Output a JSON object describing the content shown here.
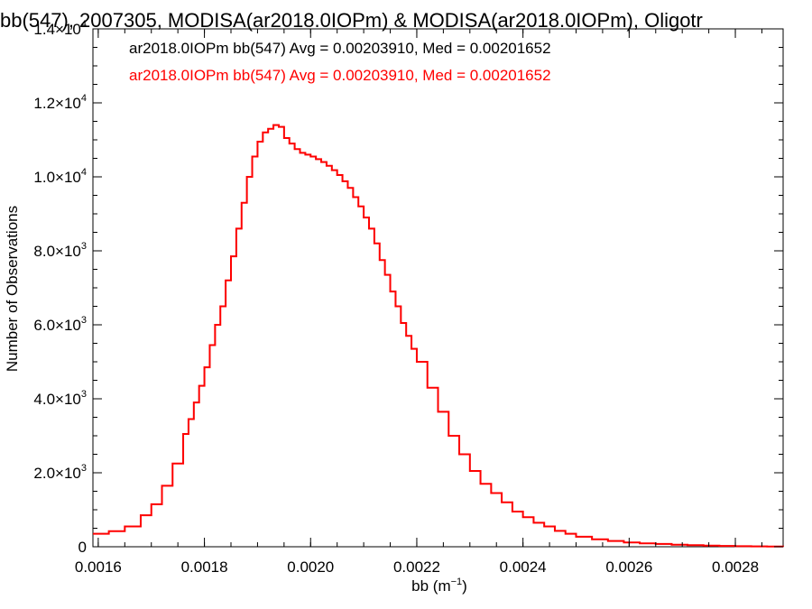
{
  "chart_data": {
    "type": "line",
    "title": "bb(547), 2007305, MODISA(ar2018.0IOPm) & MODISA(ar2018.0IOPm), Oligotr",
    "xlabel": {
      "base": "bb (m",
      "sup": "−1",
      "close": ")"
    },
    "ylabel": "Number of Observations",
    "xlim": [
      0.00159,
      0.00289
    ],
    "ylim": [
      0,
      14000
    ],
    "grid": false,
    "legend_position": "top-left",
    "x_ticks": [
      {
        "value": 0.0016,
        "label": "0.0016"
      },
      {
        "value": 0.0018,
        "label": "0.0018"
      },
      {
        "value": 0.002,
        "label": "0.0020"
      },
      {
        "value": 0.0022,
        "label": "0.0022"
      },
      {
        "value": 0.0024,
        "label": "0.0024"
      },
      {
        "value": 0.0026,
        "label": "0.0026"
      },
      {
        "value": 0.0028,
        "label": "0.0028"
      }
    ],
    "y_ticks": [
      {
        "value": 0,
        "mant": "0",
        "exp": ""
      },
      {
        "value": 2000,
        "mant": "2.0×10",
        "exp": "3"
      },
      {
        "value": 4000,
        "mant": "4.0×10",
        "exp": "3"
      },
      {
        "value": 6000,
        "mant": "6.0×10",
        "exp": "3"
      },
      {
        "value": 8000,
        "mant": "8.0×10",
        "exp": "3"
      },
      {
        "value": 10000,
        "mant": "1.0×10",
        "exp": "4"
      },
      {
        "value": 12000,
        "mant": "1.2×10",
        "exp": "4"
      },
      {
        "value": 14000,
        "mant": "1.4×10",
        "exp": "4"
      }
    ],
    "series": [
      {
        "name": "ar2018.0IOPm bb(547) Avg = 0.00203910, Med = 0.00201652",
        "color": "#000000",
        "x": [
          0.00159,
          0.00162,
          0.00165,
          0.00168,
          0.0017,
          0.00172,
          0.00174,
          0.00176,
          0.00177,
          0.00178,
          0.00179,
          0.0018,
          0.00181,
          0.00182,
          0.00183,
          0.00184,
          0.00185,
          0.00186,
          0.00187,
          0.00188,
          0.00189,
          0.0019,
          0.00191,
          0.00192,
          0.00193,
          0.00194,
          0.00195,
          0.00196,
          0.00197,
          0.00198,
          0.00199,
          0.002,
          0.00201,
          0.00202,
          0.00203,
          0.00204,
          0.00205,
          0.00206,
          0.00207,
          0.00208,
          0.00209,
          0.0021,
          0.00211,
          0.00212,
          0.00213,
          0.00214,
          0.00215,
          0.00216,
          0.00217,
          0.00218,
          0.00219,
          0.0022,
          0.00222,
          0.00224,
          0.00226,
          0.00228,
          0.0023,
          0.00232,
          0.00234,
          0.00236,
          0.00238,
          0.0024,
          0.00242,
          0.00244,
          0.00246,
          0.00248,
          0.0025,
          0.00253,
          0.00256,
          0.00259,
          0.00262,
          0.00265,
          0.00268,
          0.00271,
          0.00274,
          0.00277,
          0.0028,
          0.00283,
          0.00286,
          0.00289
        ],
        "y": [
          350,
          420,
          550,
          850,
          1150,
          1650,
          2250,
          3050,
          3450,
          3900,
          4350,
          4850,
          5450,
          6000,
          6500,
          7200,
          7850,
          8600,
          9300,
          10000,
          10550,
          10950,
          11200,
          11300,
          11400,
          11350,
          11050,
          10900,
          10750,
          10650,
          10600,
          10550,
          10480,
          10400,
          10300,
          10180,
          10050,
          9880,
          9700,
          9450,
          9200,
          8900,
          8600,
          8200,
          7750,
          7350,
          6900,
          6500,
          6050,
          5700,
          5350,
          5000,
          4300,
          3650,
          3000,
          2500,
          2050,
          1700,
          1450,
          1200,
          950,
          800,
          650,
          550,
          430,
          350,
          270,
          200,
          155,
          115,
          90,
          75,
          55,
          42,
          32,
          22,
          15,
          10,
          6,
          4
        ]
      },
      {
        "name": "ar2018.0IOPm bb(547) Avg = 0.00203910, Med = 0.00201652",
        "color": "#ff0000",
        "x": [
          0.00159,
          0.00162,
          0.00165,
          0.00168,
          0.0017,
          0.00172,
          0.00174,
          0.00176,
          0.00177,
          0.00178,
          0.00179,
          0.0018,
          0.00181,
          0.00182,
          0.00183,
          0.00184,
          0.00185,
          0.00186,
          0.00187,
          0.00188,
          0.00189,
          0.0019,
          0.00191,
          0.00192,
          0.00193,
          0.00194,
          0.00195,
          0.00196,
          0.00197,
          0.00198,
          0.00199,
          0.002,
          0.00201,
          0.00202,
          0.00203,
          0.00204,
          0.00205,
          0.00206,
          0.00207,
          0.00208,
          0.00209,
          0.0021,
          0.00211,
          0.00212,
          0.00213,
          0.00214,
          0.00215,
          0.00216,
          0.00217,
          0.00218,
          0.00219,
          0.0022,
          0.00222,
          0.00224,
          0.00226,
          0.00228,
          0.0023,
          0.00232,
          0.00234,
          0.00236,
          0.00238,
          0.0024,
          0.00242,
          0.00244,
          0.00246,
          0.00248,
          0.0025,
          0.00253,
          0.00256,
          0.00259,
          0.00262,
          0.00265,
          0.00268,
          0.00271,
          0.00274,
          0.00277,
          0.0028,
          0.00283,
          0.00286,
          0.00289
        ],
        "y": [
          350,
          420,
          550,
          850,
          1150,
          1650,
          2250,
          3050,
          3450,
          3900,
          4350,
          4850,
          5450,
          6000,
          6500,
          7200,
          7850,
          8600,
          9300,
          10000,
          10550,
          10950,
          11200,
          11300,
          11400,
          11350,
          11050,
          10900,
          10750,
          10650,
          10600,
          10550,
          10480,
          10400,
          10300,
          10180,
          10050,
          9880,
          9700,
          9450,
          9200,
          8900,
          8600,
          8200,
          7750,
          7350,
          6900,
          6500,
          6050,
          5700,
          5350,
          5000,
          4300,
          3650,
          3000,
          2500,
          2050,
          1700,
          1450,
          1200,
          950,
          800,
          650,
          550,
          430,
          350,
          270,
          200,
          155,
          115,
          90,
          75,
          55,
          42,
          32,
          22,
          15,
          10,
          6,
          4
        ]
      }
    ]
  }
}
